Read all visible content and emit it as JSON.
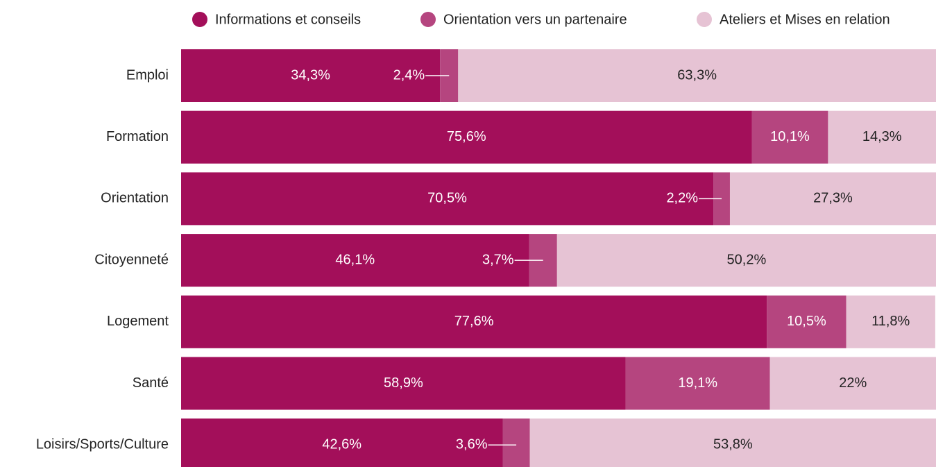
{
  "chart_data": {
    "type": "stacked-bar-horizontal",
    "categories": [
      "Emploi",
      "Formation",
      "Orientation",
      "Citoyenneté",
      "Logement",
      "Santé",
      "Loisirs/Sports/Culture"
    ],
    "xlim": [
      0,
      100
    ],
    "series": [
      {
        "name": "Informations et conseils",
        "color": "#a30f5a",
        "values": [
          34.3,
          75.6,
          70.5,
          46.1,
          77.6,
          58.9,
          42.6
        ],
        "value_labels": [
          "34,3%",
          "75,6%",
          "70,5%",
          "46,1%",
          "77,6%",
          "58,9%",
          "42,6%"
        ]
      },
      {
        "name": "Orientation vers un partenaire",
        "color": "#b5457f",
        "values": [
          2.4,
          10.1,
          2.2,
          3.7,
          10.5,
          19.1,
          3.6
        ],
        "value_labels": [
          "2,4%",
          "10,1%",
          "2,2%",
          "3,7%",
          "10,5%",
          "19,1%",
          "3,6%"
        ]
      },
      {
        "name": "Ateliers et Mises en relation",
        "color": "#e6c3d4",
        "values": [
          63.3,
          14.3,
          27.3,
          50.2,
          11.8,
          22,
          53.8
        ],
        "value_labels": [
          "63,3%",
          "14,3%",
          "27,3%",
          "50,2%",
          "11,8%",
          "22%",
          "53,8%"
        ]
      }
    ],
    "legend": "top-right"
  }
}
